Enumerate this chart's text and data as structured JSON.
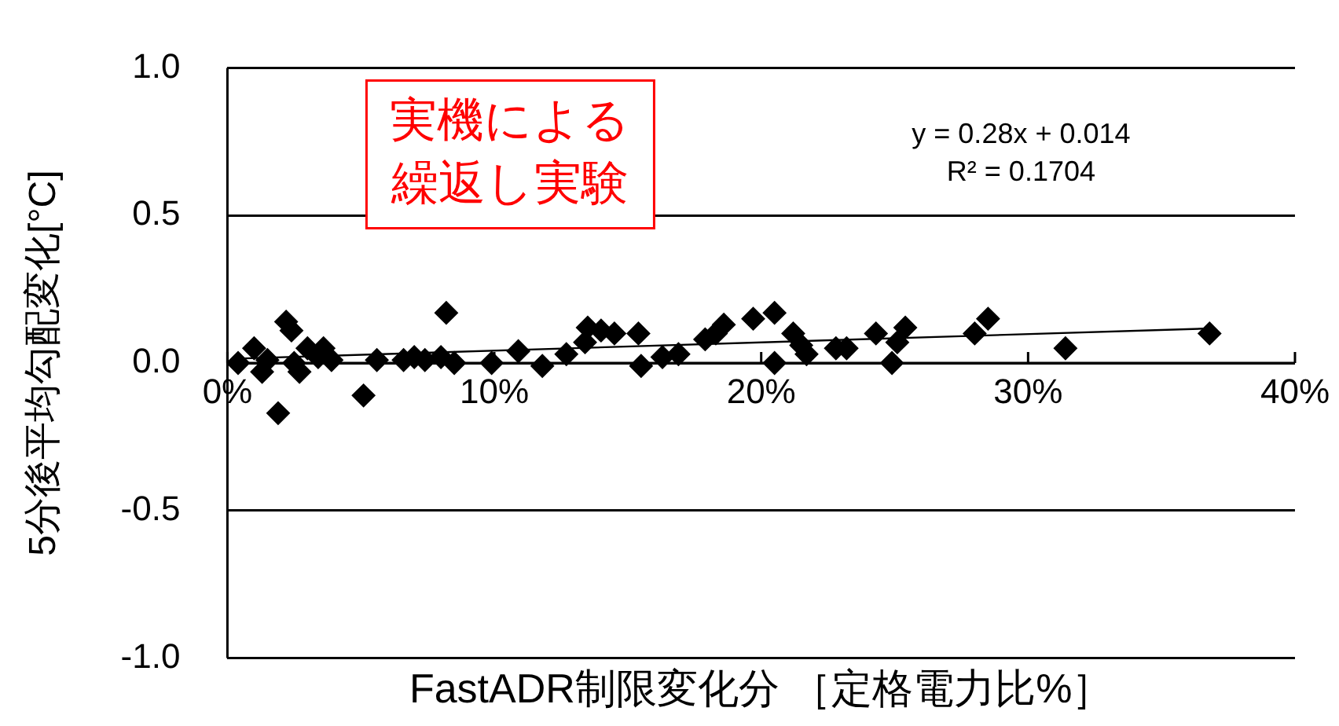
{
  "chart_data": {
    "type": "scatter",
    "xlabel": "FastADR制限変化分 ［定格電力比%］",
    "ylabel": "5分後平均勾配変化[°C]",
    "annotations": [
      "実機による",
      "繰返し実験",
      "y = 0.28x + 0.014\nR² = 0.1704"
    ],
    "xlim": [
      0,
      40
    ],
    "xticks": [
      {
        "value": 0,
        "label": "0%"
      },
      {
        "value": 10,
        "label": "10%"
      },
      {
        "value": 20,
        "label": "20%"
      },
      {
        "value": 30,
        "label": "30%"
      },
      {
        "value": 40,
        "label": "40%"
      }
    ],
    "ylim": [
      -1,
      1
    ],
    "yticks": [
      {
        "value": -1,
        "label": "-1.0"
      },
      {
        "value": -0.5,
        "label": "-0.5"
      },
      {
        "value": 0,
        "label": "0.0"
      },
      {
        "value": 0.5,
        "label": "0.5"
      },
      {
        "value": 1,
        "label": "1.0"
      }
    ],
    "grid": "y",
    "marker": "diamond",
    "legend": false,
    "series": [
      {
        "color": "#000000",
        "x": [
          0.4,
          1.0,
          1.3,
          1.5,
          1.9,
          2.2,
          2.4,
          2.5,
          2.7,
          3.0,
          3.4,
          3.6,
          3.9,
          5.1,
          5.6,
          6.6,
          7.0,
          7.4,
          8.0,
          8.2,
          8.5,
          9.9,
          10.9,
          11.8,
          12.7,
          13.4,
          13.5,
          14.0,
          14.5,
          15.4,
          15.5,
          16.3,
          16.9,
          17.9,
          18.3,
          18.6,
          19.7,
          20.5,
          20.5,
          21.2,
          21.5,
          21.7,
          22.8,
          23.2,
          24.3,
          24.9,
          25.1,
          25.4,
          28.0,
          28.5,
          31.4,
          36.8
        ],
        "values": [
          0.0,
          0.05,
          -0.03,
          0.01,
          -0.17,
          0.14,
          0.11,
          0.0,
          -0.03,
          0.05,
          0.02,
          0.05,
          0.01,
          -0.11,
          0.01,
          0.01,
          0.02,
          0.01,
          0.02,
          0.17,
          0.0,
          0.0,
          0.04,
          -0.01,
          0.03,
          0.07,
          0.12,
          0.11,
          0.1,
          0.1,
          -0.01,
          0.02,
          0.03,
          0.08,
          0.1,
          0.13,
          0.15,
          0.0,
          0.17,
          0.1,
          0.06,
          0.03,
          0.05,
          0.05,
          0.1,
          0.0,
          0.07,
          0.12,
          0.1,
          0.15,
          0.05,
          0.1
        ]
      },
      {
        "type": "line",
        "marker": "none",
        "color": "#000000",
        "x": [
          0.4,
          36.8
        ],
        "values": [
          0.015,
          0.117
        ]
      }
    ]
  }
}
